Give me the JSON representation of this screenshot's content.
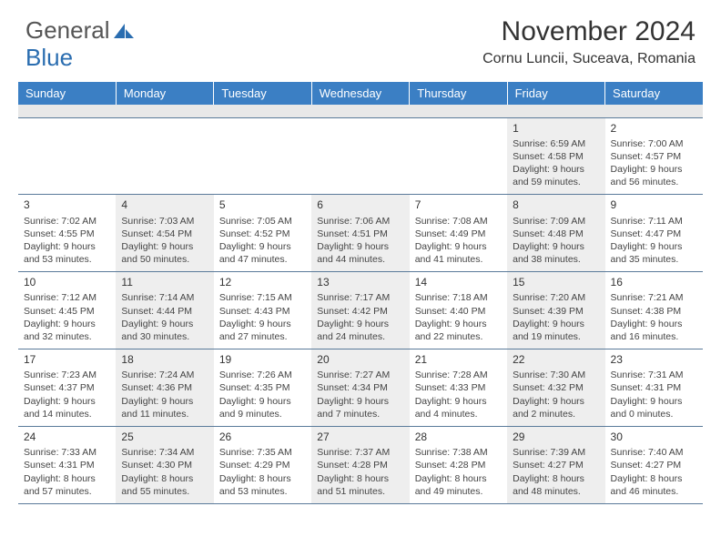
{
  "logo": {
    "part1": "General",
    "part2": "Blue"
  },
  "title": "November 2024",
  "location": "Cornu Luncii, Suceava, Romania",
  "colors": {
    "header_bg": "#3b7fc4",
    "header_text": "#ffffff",
    "shade_bg": "#eeeeee",
    "rule": "#5a7a9a",
    "logo_gray": "#555555",
    "logo_blue": "#2a6db0"
  },
  "day_headers": [
    "Sunday",
    "Monday",
    "Tuesday",
    "Wednesday",
    "Thursday",
    "Friday",
    "Saturday"
  ],
  "weeks": [
    [
      null,
      null,
      null,
      null,
      null,
      {
        "n": "1",
        "sr": "Sunrise: 6:59 AM",
        "ss": "Sunset: 4:58 PM",
        "d1": "Daylight: 9 hours",
        "d2": "and 59 minutes."
      },
      {
        "n": "2",
        "sr": "Sunrise: 7:00 AM",
        "ss": "Sunset: 4:57 PM",
        "d1": "Daylight: 9 hours",
        "d2": "and 56 minutes."
      }
    ],
    [
      {
        "n": "3",
        "sr": "Sunrise: 7:02 AM",
        "ss": "Sunset: 4:55 PM",
        "d1": "Daylight: 9 hours",
        "d2": "and 53 minutes."
      },
      {
        "n": "4",
        "sr": "Sunrise: 7:03 AM",
        "ss": "Sunset: 4:54 PM",
        "d1": "Daylight: 9 hours",
        "d2": "and 50 minutes."
      },
      {
        "n": "5",
        "sr": "Sunrise: 7:05 AM",
        "ss": "Sunset: 4:52 PM",
        "d1": "Daylight: 9 hours",
        "d2": "and 47 minutes."
      },
      {
        "n": "6",
        "sr": "Sunrise: 7:06 AM",
        "ss": "Sunset: 4:51 PM",
        "d1": "Daylight: 9 hours",
        "d2": "and 44 minutes."
      },
      {
        "n": "7",
        "sr": "Sunrise: 7:08 AM",
        "ss": "Sunset: 4:49 PM",
        "d1": "Daylight: 9 hours",
        "d2": "and 41 minutes."
      },
      {
        "n": "8",
        "sr": "Sunrise: 7:09 AM",
        "ss": "Sunset: 4:48 PM",
        "d1": "Daylight: 9 hours",
        "d2": "and 38 minutes."
      },
      {
        "n": "9",
        "sr": "Sunrise: 7:11 AM",
        "ss": "Sunset: 4:47 PM",
        "d1": "Daylight: 9 hours",
        "d2": "and 35 minutes."
      }
    ],
    [
      {
        "n": "10",
        "sr": "Sunrise: 7:12 AM",
        "ss": "Sunset: 4:45 PM",
        "d1": "Daylight: 9 hours",
        "d2": "and 32 minutes."
      },
      {
        "n": "11",
        "sr": "Sunrise: 7:14 AM",
        "ss": "Sunset: 4:44 PM",
        "d1": "Daylight: 9 hours",
        "d2": "and 30 minutes."
      },
      {
        "n": "12",
        "sr": "Sunrise: 7:15 AM",
        "ss": "Sunset: 4:43 PM",
        "d1": "Daylight: 9 hours",
        "d2": "and 27 minutes."
      },
      {
        "n": "13",
        "sr": "Sunrise: 7:17 AM",
        "ss": "Sunset: 4:42 PM",
        "d1": "Daylight: 9 hours",
        "d2": "and 24 minutes."
      },
      {
        "n": "14",
        "sr": "Sunrise: 7:18 AM",
        "ss": "Sunset: 4:40 PM",
        "d1": "Daylight: 9 hours",
        "d2": "and 22 minutes."
      },
      {
        "n": "15",
        "sr": "Sunrise: 7:20 AM",
        "ss": "Sunset: 4:39 PM",
        "d1": "Daylight: 9 hours",
        "d2": "and 19 minutes."
      },
      {
        "n": "16",
        "sr": "Sunrise: 7:21 AM",
        "ss": "Sunset: 4:38 PM",
        "d1": "Daylight: 9 hours",
        "d2": "and 16 minutes."
      }
    ],
    [
      {
        "n": "17",
        "sr": "Sunrise: 7:23 AM",
        "ss": "Sunset: 4:37 PM",
        "d1": "Daylight: 9 hours",
        "d2": "and 14 minutes."
      },
      {
        "n": "18",
        "sr": "Sunrise: 7:24 AM",
        "ss": "Sunset: 4:36 PM",
        "d1": "Daylight: 9 hours",
        "d2": "and 11 minutes."
      },
      {
        "n": "19",
        "sr": "Sunrise: 7:26 AM",
        "ss": "Sunset: 4:35 PM",
        "d1": "Daylight: 9 hours",
        "d2": "and 9 minutes."
      },
      {
        "n": "20",
        "sr": "Sunrise: 7:27 AM",
        "ss": "Sunset: 4:34 PM",
        "d1": "Daylight: 9 hours",
        "d2": "and 7 minutes."
      },
      {
        "n": "21",
        "sr": "Sunrise: 7:28 AM",
        "ss": "Sunset: 4:33 PM",
        "d1": "Daylight: 9 hours",
        "d2": "and 4 minutes."
      },
      {
        "n": "22",
        "sr": "Sunrise: 7:30 AM",
        "ss": "Sunset: 4:32 PM",
        "d1": "Daylight: 9 hours",
        "d2": "and 2 minutes."
      },
      {
        "n": "23",
        "sr": "Sunrise: 7:31 AM",
        "ss": "Sunset: 4:31 PM",
        "d1": "Daylight: 9 hours",
        "d2": "and 0 minutes."
      }
    ],
    [
      {
        "n": "24",
        "sr": "Sunrise: 7:33 AM",
        "ss": "Sunset: 4:31 PM",
        "d1": "Daylight: 8 hours",
        "d2": "and 57 minutes."
      },
      {
        "n": "25",
        "sr": "Sunrise: 7:34 AM",
        "ss": "Sunset: 4:30 PM",
        "d1": "Daylight: 8 hours",
        "d2": "and 55 minutes."
      },
      {
        "n": "26",
        "sr": "Sunrise: 7:35 AM",
        "ss": "Sunset: 4:29 PM",
        "d1": "Daylight: 8 hours",
        "d2": "and 53 minutes."
      },
      {
        "n": "27",
        "sr": "Sunrise: 7:37 AM",
        "ss": "Sunset: 4:28 PM",
        "d1": "Daylight: 8 hours",
        "d2": "and 51 minutes."
      },
      {
        "n": "28",
        "sr": "Sunrise: 7:38 AM",
        "ss": "Sunset: 4:28 PM",
        "d1": "Daylight: 8 hours",
        "d2": "and 49 minutes."
      },
      {
        "n": "29",
        "sr": "Sunrise: 7:39 AM",
        "ss": "Sunset: 4:27 PM",
        "d1": "Daylight: 8 hours",
        "d2": "and 48 minutes."
      },
      {
        "n": "30",
        "sr": "Sunrise: 7:40 AM",
        "ss": "Sunset: 4:27 PM",
        "d1": "Daylight: 8 hours",
        "d2": "and 46 minutes."
      }
    ]
  ]
}
